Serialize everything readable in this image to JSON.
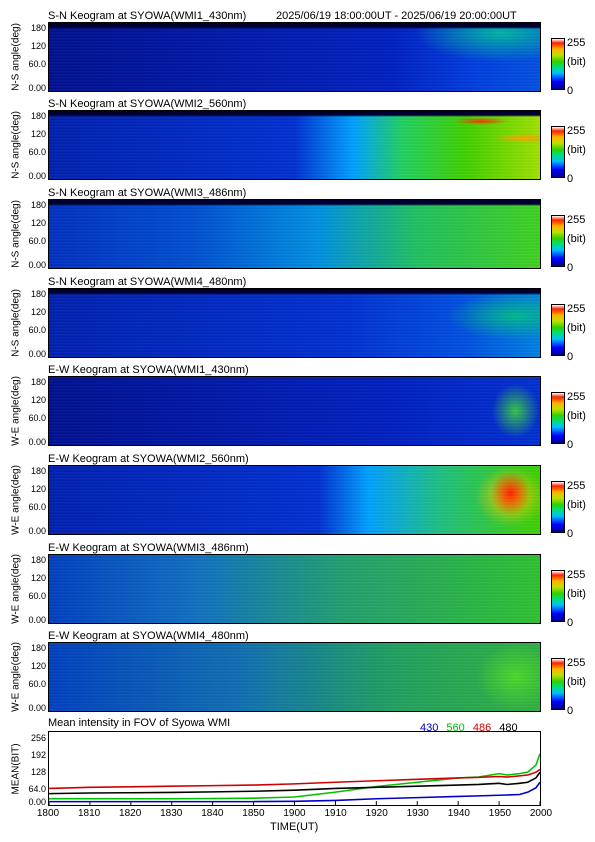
{
  "header": {
    "date_range": "2025/06/19 18:00:00UT - 2025/06/19 20:00:00UT"
  },
  "colorbar": {
    "max": "255",
    "unit": "(bit)",
    "min": "0"
  },
  "panels": [
    {
      "title": "S-N Keogram at SYOWA(WMI1_430nm)",
      "ylabel": "N-S angle(deg)",
      "yticks": [
        "180",
        "120",
        "60.0",
        "0.00"
      ]
    },
    {
      "title": "S-N Keogram at SYOWA(WMI2_560nm)",
      "ylabel": "N-S angle(deg)",
      "yticks": [
        "180",
        "120",
        "60.0",
        "0.00"
      ]
    },
    {
      "title": "S-N Keogram at SYOWA(WMI3_486nm)",
      "ylabel": "N-S angle(deg)",
      "yticks": [
        "180",
        "120",
        "60.0",
        "0.00"
      ]
    },
    {
      "title": "S-N Keogram at SYOWA(WMI4_480nm)",
      "ylabel": "N-S angle(deg)",
      "yticks": [
        "180",
        "120",
        "60.0",
        "0.00"
      ]
    },
    {
      "title": "E-W Keogram at SYOWA(WMI1_430nm)",
      "ylabel": "W-E angle(deg)",
      "yticks": [
        "180",
        "120",
        "60.0",
        "0.00"
      ]
    },
    {
      "title": "E-W Keogram at SYOWA(WMI2_560nm)",
      "ylabel": "W-E angle(deg)",
      "yticks": [
        "180",
        "120",
        "60.0",
        "0.00"
      ]
    },
    {
      "title": "E-W Keogram at SYOWA(WMI3_486nm)",
      "ylabel": "W-E angle(deg)",
      "yticks": [
        "180",
        "120",
        "60.0",
        "0.00"
      ]
    },
    {
      "title": "E-W Keogram at SYOWA(WMI4_480nm)",
      "ylabel": "W-E angle(deg)",
      "yticks": [
        "180",
        "120",
        "60.0",
        "0.00"
      ]
    }
  ],
  "mean_panel": {
    "title": "Mean intensity in FOV of Syowa WMI",
    "ylabel": "MEAN(BIT)",
    "yticks": [
      "256",
      "192",
      "128",
      "64.0",
      "0.00"
    ],
    "xlabel": "TIME(UT)",
    "xticks": [
      "1800",
      "1810",
      "1820",
      "1830",
      "1840",
      "1850",
      "1900",
      "1910",
      "1920",
      "1930",
      "1940",
      "1950",
      "2000"
    ],
    "legend": [
      {
        "label": "430",
        "color": "#0000c8"
      },
      {
        "label": "560",
        "color": "#00c000"
      },
      {
        "label": "486",
        "color": "#d00000"
      },
      {
        "label": "480",
        "color": "#000000"
      }
    ]
  },
  "chart_data": {
    "type": "line",
    "title": "Mean intensity in FOV of Syowa WMI",
    "xlabel": "TIME(UT)",
    "ylabel": "MEAN(BIT)",
    "ylim": [
      0,
      256
    ],
    "x": [
      0,
      10,
      20,
      30,
      40,
      50,
      60,
      70,
      80,
      90,
      100,
      105,
      110,
      112,
      115,
      117,
      119,
      120
    ],
    "x_tick_labels": [
      "1800",
      "1810",
      "1820",
      "1830",
      "1840",
      "1850",
      "1900",
      "1910",
      "1920",
      "1930",
      "1940",
      "1950",
      "2000"
    ],
    "series": [
      {
        "name": "430",
        "color": "#0000c8",
        "values": [
          12,
          12,
          12,
          12,
          12,
          12,
          13,
          16,
          22,
          26,
          30,
          32,
          34,
          35,
          37,
          45,
          60,
          80
        ]
      },
      {
        "name": "560",
        "color": "#00c000",
        "values": [
          22,
          22,
          22,
          22,
          23,
          24,
          28,
          45,
          65,
          80,
          95,
          98,
          110,
          105,
          110,
          115,
          140,
          180
        ]
      },
      {
        "name": "486",
        "color": "#d00000",
        "values": [
          58,
          62,
          64,
          66,
          68,
          70,
          74,
          80,
          85,
          90,
          95,
          97,
          100,
          98,
          102,
          105,
          115,
          125
        ]
      },
      {
        "name": "480",
        "color": "#000000",
        "values": [
          40,
          42,
          43,
          44,
          46,
          48,
          52,
          58,
          62,
          66,
          70,
          72,
          76,
          72,
          76,
          80,
          95,
          115
        ]
      }
    ]
  }
}
